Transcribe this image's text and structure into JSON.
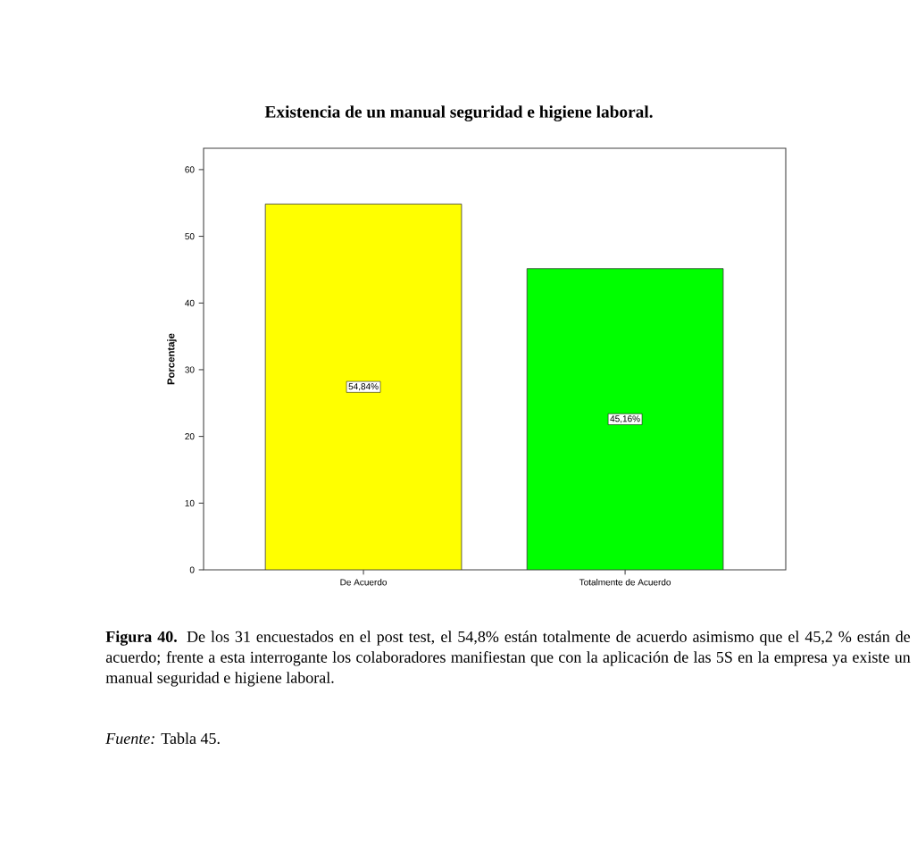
{
  "chart_data": {
    "type": "bar",
    "title": "Existencia de un manual seguridad e higiene laboral.",
    "ylabel": "Porcentaje",
    "categories": [
      "De Acuerdo",
      "Totalmente de Acuerdo"
    ],
    "values": [
      54.84,
      45.16
    ],
    "colors": [
      "#ffff00",
      "#00ff00"
    ],
    "value_labels": [
      "54,84%",
      "45,16%"
    ],
    "ylim": [
      0,
      63.2
    ],
    "yticks": [
      0,
      10,
      20,
      30,
      40,
      50,
      60
    ],
    "annotations": [
      "**Figura 40.** De los 31 encuestados en el post test, el 54,8% están totalmente de acuerdo asimismo que el 45,2 % están de acuerdo; frente a esta interrogante los colaboradores manifiestan que con la aplicación de las 5S en la empresa ya existe un manual seguridad e higiene laboral.",
      "*Fuente:* Tabla 45."
    ]
  }
}
